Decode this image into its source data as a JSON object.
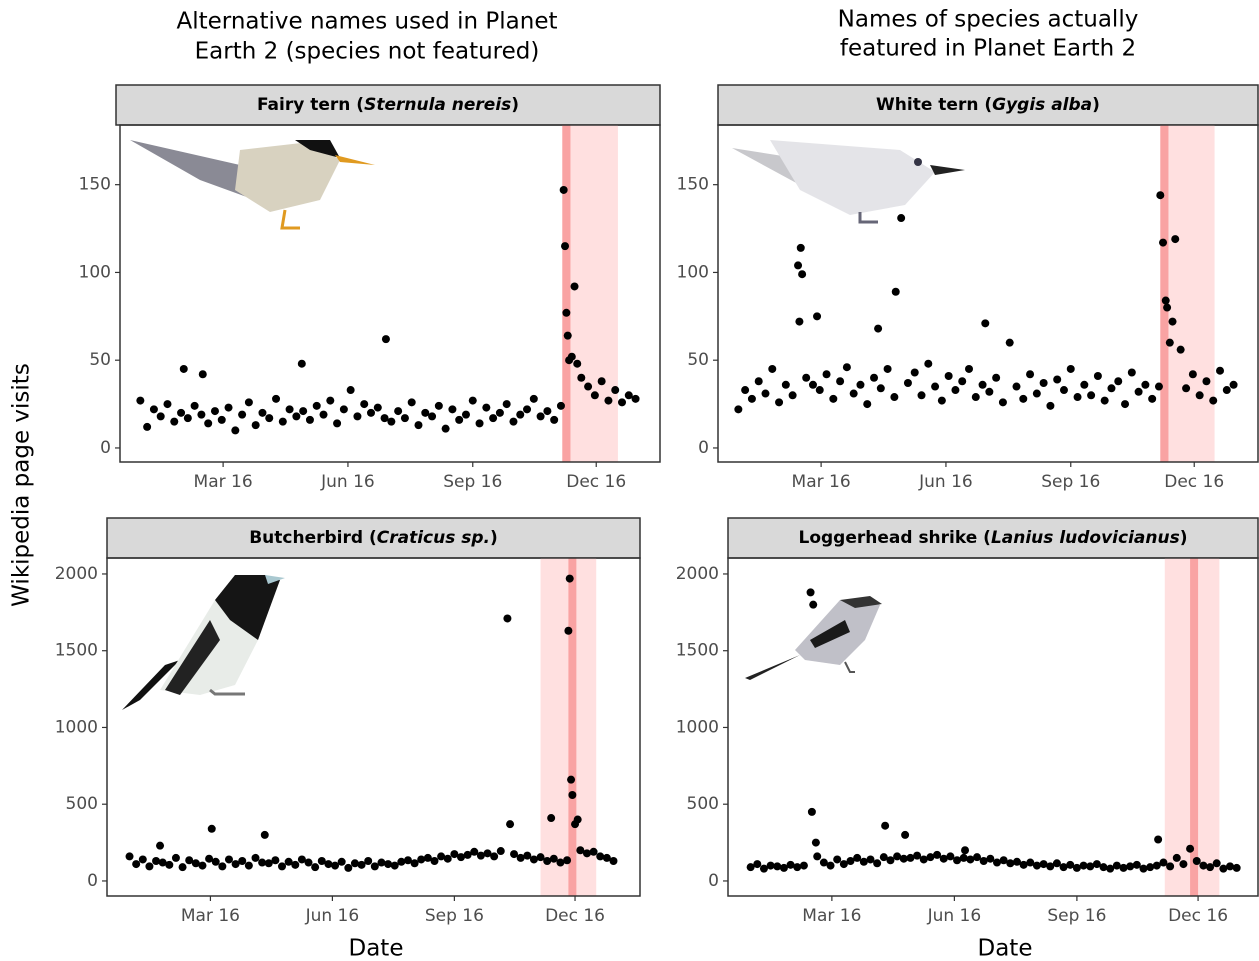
{
  "figure": {
    "column_titles": [
      [
        "Alternative names used in Planet",
        "Earth 2 (species not featured)"
      ],
      [
        "Names of species actually",
        "featured in Planet Earth 2"
      ]
    ],
    "ylabel": "Wikipedia page visits",
    "xlabel": "Date"
  },
  "chart_data": [
    {
      "type": "scatter",
      "title_parts": [
        {
          "text": "Fairy tern ("
        },
        {
          "text": "Sternula nereis",
          "italic": true
        },
        {
          "text": ")"
        }
      ],
      "color": "#000000",
      "xlim": [
        -15,
        383
      ],
      "ylim": [
        -8,
        184
      ],
      "yticks": [
        0,
        50,
        100,
        150
      ],
      "xticks": [
        {
          "value": 61,
          "label": "Mar 16"
        },
        {
          "value": 153,
          "label": "Jun 16"
        },
        {
          "value": 245,
          "label": "Sep 16"
        },
        {
          "value": 336,
          "label": "Dec 16"
        }
      ],
      "window": [
        311,
        352
      ],
      "window_color": "#ffe0e0",
      "broadcast": [
        311,
        317
      ],
      "broadcast_color": "#f9a3a3",
      "x": [
        0,
        5,
        10,
        15,
        20,
        25,
        30,
        32,
        35,
        40,
        45,
        46,
        50,
        55,
        60,
        65,
        70,
        75,
        80,
        85,
        90,
        95,
        100,
        105,
        110,
        115,
        119,
        120,
        125,
        130,
        135,
        140,
        145,
        150,
        155,
        160,
        165,
        170,
        175,
        180,
        181,
        185,
        190,
        195,
        200,
        205,
        210,
        215,
        220,
        225,
        230,
        235,
        240,
        245,
        250,
        255,
        260,
        265,
        270,
        275,
        280,
        285,
        290,
        295,
        300,
        305,
        310,
        312,
        313,
        314,
        315,
        316,
        318,
        320,
        322,
        325,
        330,
        335,
        340,
        345,
        350,
        355,
        360,
        365
      ],
      "values": [
        27,
        12,
        22,
        18,
        25,
        15,
        20,
        45,
        17,
        24,
        19,
        42,
        14,
        21,
        16,
        23,
        10,
        19,
        26,
        13,
        20,
        17,
        28,
        15,
        22,
        18,
        48,
        21,
        16,
        24,
        19,
        27,
        14,
        22,
        33,
        18,
        25,
        20,
        23,
        17,
        62,
        15,
        21,
        17,
        26,
        13,
        20,
        18,
        24,
        11,
        22,
        16,
        19,
        27,
        14,
        23,
        17,
        20,
        25,
        15,
        19,
        22,
        28,
        18,
        21,
        16,
        24,
        147,
        115,
        77,
        64,
        50,
        52,
        92,
        48,
        40,
        35,
        30,
        38,
        27,
        33,
        26,
        30,
        28
      ]
    },
    {
      "type": "scatter",
      "title_parts": [
        {
          "text": "White tern ("
        },
        {
          "text": "Gygis alba",
          "italic": true
        },
        {
          "text": ")"
        }
      ],
      "color": "#000000",
      "xlim": [
        -15,
        383
      ],
      "ylim": [
        -8,
        184
      ],
      "yticks": [
        0,
        50,
        100,
        150
      ],
      "xticks": [
        {
          "value": 61,
          "label": "Mar 16"
        },
        {
          "value": 153,
          "label": "Jun 16"
        },
        {
          "value": 245,
          "label": "Sep 16"
        },
        {
          "value": 336,
          "label": "Dec 16"
        }
      ],
      "window": [
        311,
        351
      ],
      "window_color": "#ffe0e0",
      "broadcast": [
        311,
        317
      ],
      "broadcast_color": "#f9a3a3",
      "x": [
        0,
        5,
        10,
        15,
        20,
        25,
        30,
        35,
        40,
        44,
        45,
        46,
        47,
        50,
        55,
        58,
        60,
        65,
        70,
        75,
        80,
        85,
        90,
        95,
        100,
        103,
        105,
        110,
        115,
        116,
        120,
        125,
        130,
        135,
        140,
        145,
        150,
        155,
        160,
        165,
        170,
        175,
        180,
        182,
        185,
        190,
        195,
        200,
        205,
        210,
        215,
        220,
        225,
        230,
        235,
        240,
        245,
        250,
        255,
        260,
        265,
        270,
        275,
        280,
        285,
        290,
        295,
        300,
        305,
        310,
        311,
        313,
        315,
        316,
        318,
        320,
        322,
        326,
        330,
        335,
        340,
        345,
        350,
        355,
        360,
        365
      ],
      "values": [
        22,
        33,
        28,
        38,
        31,
        45,
        26,
        36,
        30,
        104,
        72,
        114,
        99,
        40,
        36,
        75,
        33,
        42,
        28,
        38,
        46,
        31,
        36,
        25,
        40,
        68,
        34,
        45,
        29,
        89,
        131,
        37,
        43,
        30,
        48,
        35,
        27,
        41,
        33,
        38,
        45,
        29,
        36,
        71,
        32,
        40,
        26,
        60,
        35,
        28,
        42,
        31,
        37,
        24,
        39,
        33,
        45,
        29,
        36,
        30,
        41,
        27,
        34,
        38,
        25,
        43,
        32,
        36,
        28,
        35,
        144,
        117,
        84,
        80,
        60,
        72,
        119,
        56,
        34,
        42,
        30,
        38,
        27,
        44,
        33,
        36
      ]
    },
    {
      "type": "scatter",
      "title_parts": [
        {
          "text": "Butcherbird ("
        },
        {
          "text": "Craticus sp.",
          "italic": true
        },
        {
          "text": ")"
        }
      ],
      "color": "#000000",
      "xlim": [
        -17,
        385
      ],
      "ylim": [
        -98,
        2104
      ],
      "yticks": [
        0,
        500,
        1000,
        1500,
        2000
      ],
      "xticks": [
        {
          "value": 61,
          "label": "Mar 16"
        },
        {
          "value": 153,
          "label": "Jun 16"
        },
        {
          "value": 245,
          "label": "Sep 16"
        },
        {
          "value": 336,
          "label": "Dec 16"
        }
      ],
      "window": [
        310,
        352
      ],
      "window_color": "#ffe0e0",
      "broadcast": [
        331,
        337
      ],
      "broadcast_color": "#f9a3a3",
      "x": [
        0,
        5,
        10,
        15,
        20,
        23,
        25,
        30,
        35,
        40,
        45,
        50,
        55,
        60,
        62,
        65,
        70,
        75,
        80,
        85,
        90,
        95,
        100,
        102,
        105,
        110,
        115,
        120,
        125,
        130,
        135,
        140,
        145,
        150,
        155,
        160,
        165,
        170,
        175,
        180,
        185,
        190,
        195,
        200,
        205,
        210,
        215,
        220,
        225,
        230,
        235,
        240,
        245,
        250,
        255,
        260,
        265,
        270,
        275,
        280,
        285,
        287,
        290,
        295,
        300,
        305,
        310,
        315,
        318,
        320,
        325,
        330,
        331,
        332,
        333,
        334,
        336,
        338,
        340,
        345,
        350,
        355,
        360,
        365
      ],
      "values": [
        160,
        110,
        140,
        95,
        130,
        230,
        120,
        105,
        150,
        90,
        135,
        115,
        100,
        145,
        340,
        125,
        95,
        140,
        110,
        130,
        100,
        150,
        120,
        300,
        115,
        135,
        95,
        125,
        105,
        140,
        120,
        90,
        130,
        110,
        100,
        125,
        85,
        115,
        105,
        130,
        95,
        120,
        110,
        100,
        125,
        135,
        115,
        140,
        150,
        130,
        160,
        145,
        175,
        155,
        170,
        190,
        165,
        180,
        160,
        195,
        1710,
        370,
        175,
        150,
        165,
        140,
        155,
        130,
        410,
        145,
        120,
        135,
        1630,
        1970,
        660,
        560,
        370,
        400,
        200,
        180,
        190,
        160,
        150,
        130
      ]
    },
    {
      "type": "scatter",
      "title_parts": [
        {
          "text": "Loggerhead shrike ("
        },
        {
          "text": "Lanius ludovicianus",
          "italic": true
        },
        {
          "text": ")"
        }
      ],
      "color": "#000000",
      "xlim": [
        -17,
        381
      ],
      "ylim": [
        -98,
        2104
      ],
      "yticks": [
        0,
        500,
        1000,
        1500,
        2000
      ],
      "xticks": [
        {
          "value": 61,
          "label": "Mar 16"
        },
        {
          "value": 153,
          "label": "Jun 16"
        },
        {
          "value": 245,
          "label": "Sep 16"
        },
        {
          "value": 336,
          "label": "Dec 16"
        }
      ],
      "window": [
        311,
        352
      ],
      "window_color": "#ffe0e0",
      "broadcast": [
        330,
        336
      ],
      "broadcast_color": "#f9a3a3",
      "x": [
        0,
        5,
        10,
        15,
        20,
        25,
        30,
        35,
        40,
        45,
        46,
        47,
        49,
        50,
        55,
        60,
        65,
        70,
        75,
        80,
        85,
        90,
        95,
        100,
        101,
        105,
        110,
        115,
        116,
        120,
        125,
        130,
        135,
        140,
        145,
        150,
        155,
        160,
        161,
        165,
        170,
        175,
        180,
        185,
        190,
        195,
        200,
        205,
        210,
        215,
        220,
        225,
        230,
        235,
        240,
        245,
        250,
        255,
        260,
        265,
        270,
        275,
        280,
        285,
        290,
        295,
        300,
        305,
        306,
        310,
        315,
        320,
        325,
        330,
        335,
        340,
        345,
        350,
        355,
        360,
        365
      ],
      "values": [
        90,
        110,
        80,
        100,
        95,
        85,
        105,
        90,
        100,
        1880,
        450,
        1800,
        250,
        160,
        120,
        100,
        140,
        110,
        130,
        150,
        125,
        140,
        115,
        155,
        360,
        135,
        160,
        145,
        300,
        150,
        165,
        140,
        155,
        170,
        145,
        160,
        135,
        150,
        200,
        140,
        155,
        130,
        145,
        120,
        135,
        115,
        125,
        105,
        120,
        100,
        110,
        95,
        115,
        90,
        105,
        85,
        100,
        95,
        110,
        90,
        80,
        100,
        85,
        95,
        105,
        80,
        90,
        100,
        270,
        120,
        95,
        150,
        110,
        210,
        130,
        100,
        90,
        115,
        80,
        95,
        85
      ]
    }
  ]
}
